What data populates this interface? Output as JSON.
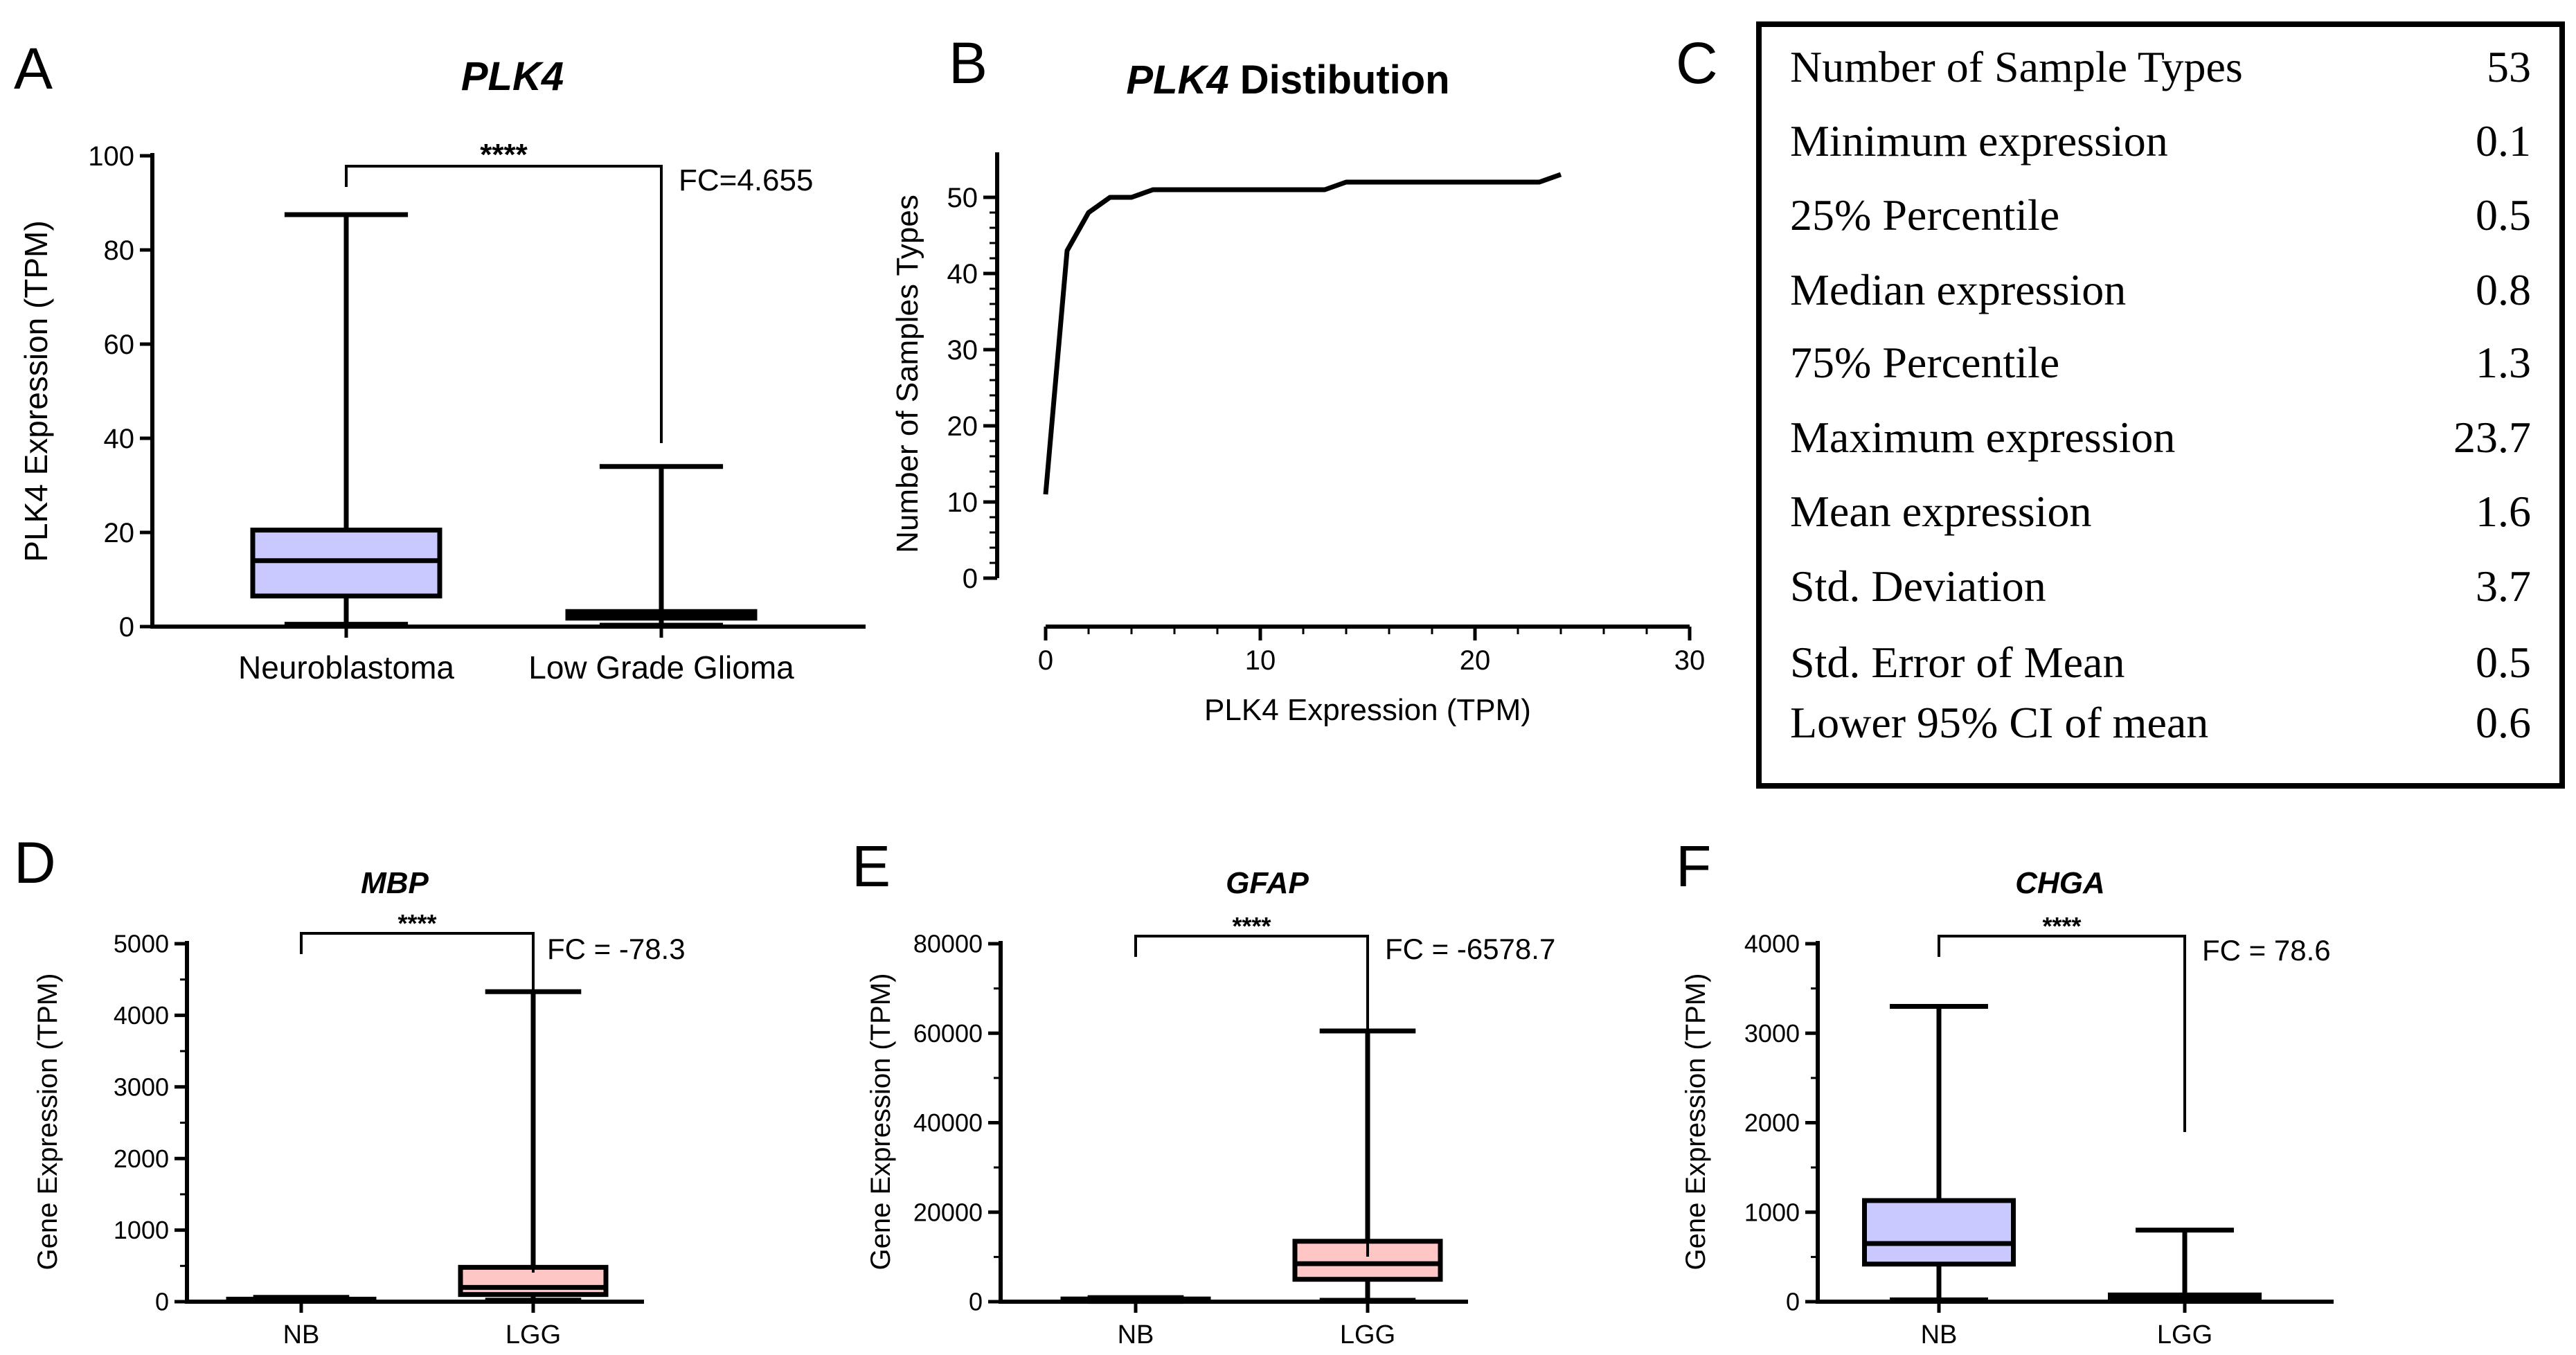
{
  "colors": {
    "blue_box": "#c9c9ff",
    "pink_box": "#ffc6c6",
    "ink": "#000000"
  },
  "panels": {
    "A": {
      "letter": "A"
    },
    "B": {
      "letter": "B"
    },
    "C": {
      "letter": "C"
    },
    "D": {
      "letter": "D"
    },
    "E": {
      "letter": "E"
    },
    "F": {
      "letter": "F"
    }
  },
  "chart_data": [
    {
      "id": "A",
      "type": "box",
      "title": "PLK4",
      "ylabel": "PLK4 Expression  (TPM)",
      "ylim": [
        0,
        100
      ],
      "yticks": [
        "0",
        "20",
        "40",
        "60",
        "80",
        "100"
      ],
      "categories": [
        "Neuroblastoma",
        "Low Grade Glioma"
      ],
      "boxes": [
        {
          "name": "Neuroblastoma",
          "min": 0.5,
          "q1": 6.5,
          "median": 14,
          "q3": 20.5,
          "max": 87.5,
          "color": "blue"
        },
        {
          "name": "Low Grade Glioma",
          "min": 0.3,
          "q1": 1.8,
          "median": 2.5,
          "q3": 3.2,
          "max": 34,
          "color": "blue"
        }
      ],
      "significance": "****",
      "fc": "FC=4.655"
    },
    {
      "id": "B",
      "type": "line",
      "title_italic": "PLK4",
      "title_rest": " Distibution",
      "xlabel": "PLK4  Expression (TPM)",
      "ylabel": "Number of Samples Types",
      "xlim": [
        0,
        30
      ],
      "ylim": [
        0,
        55
      ],
      "xticks": [
        "0",
        "10",
        "20",
        "30"
      ],
      "yticks": [
        "0",
        "10",
        "20",
        "30",
        "40",
        "50"
      ],
      "x": [
        0,
        1,
        2,
        3,
        4,
        5,
        6,
        10,
        13,
        14,
        16,
        20,
        23,
        24
      ],
      "y": [
        11,
        43,
        48,
        50,
        50,
        51,
        51,
        51,
        51,
        52,
        52,
        52,
        52,
        53
      ]
    },
    {
      "id": "C",
      "type": "table",
      "rows": [
        {
          "label": "Number of Sample Types",
          "value": "53"
        },
        {
          "label": "Minimum expression",
          "value": "0.1"
        },
        {
          "label": "25% Percentile",
          "value": "0.5"
        },
        {
          "label": "Median expression",
          "value": "0.8"
        },
        {
          "label": "75% Percentile",
          "value": "1.3"
        },
        {
          "label": "Maximum expression",
          "value": "23.7"
        },
        {
          "label": "Mean expression",
          "value": "1.6"
        },
        {
          "label": "Std. Deviation",
          "value": "3.7"
        },
        {
          "label": "Std. Error of Mean",
          "value": "0.5"
        },
        {
          "label": "Lower 95% CI of mean",
          "value": "0.6"
        }
      ]
    },
    {
      "id": "D",
      "type": "box",
      "title": "MBP",
      "ylabel": "Gene Expression  (TPM)",
      "ylim": [
        0,
        5000
      ],
      "yticks": [
        "0",
        "1000",
        "2000",
        "3000",
        "4000",
        "5000"
      ],
      "categories": [
        "NB",
        "LGG"
      ],
      "boxes": [
        {
          "name": "NB",
          "min": 5,
          "q1": 15,
          "median": 25,
          "q3": 35,
          "max": 60,
          "color": "blue"
        },
        {
          "name": "LGG",
          "min": 20,
          "q1": 100,
          "median": 200,
          "q3": 480,
          "max": 4330,
          "color": "pink"
        }
      ],
      "significance": "****",
      "fc": "FC = -78.3"
    },
    {
      "id": "E",
      "type": "box",
      "title": "GFAP",
      "ylabel": "Gene Expression  (TPM)",
      "ylim": [
        0,
        80000
      ],
      "yticks": [
        "0",
        "20000",
        "40000",
        "60000",
        "80000"
      ],
      "categories": [
        "NB",
        "LGG"
      ],
      "boxes": [
        {
          "name": "NB",
          "min": 50,
          "q1": 200,
          "median": 400,
          "q3": 600,
          "max": 900,
          "color": "blue"
        },
        {
          "name": "LGG",
          "min": 300,
          "q1": 5000,
          "median": 8500,
          "q3": 13500,
          "max": 60500,
          "color": "pink"
        }
      ],
      "significance": "****",
      "fc": "FC = -6578.7"
    },
    {
      "id": "F",
      "type": "box",
      "title": "CHGA",
      "ylabel": "Gene Expression  (TPM)",
      "ylim": [
        0,
        4000
      ],
      "yticks": [
        "0",
        "1000",
        "2000",
        "3000",
        "4000"
      ],
      "categories": [
        "NB",
        "LGG"
      ],
      "boxes": [
        {
          "name": "NB",
          "min": 20,
          "q1": 420,
          "median": 650,
          "q3": 1130,
          "max": 3300,
          "color": "blue"
        },
        {
          "name": "LGG",
          "min": 5,
          "q1": 20,
          "median": 40,
          "q3": 75,
          "max": 800,
          "color": "blue"
        }
      ],
      "significance": "****",
      "fc": "FC = 78.6"
    }
  ]
}
